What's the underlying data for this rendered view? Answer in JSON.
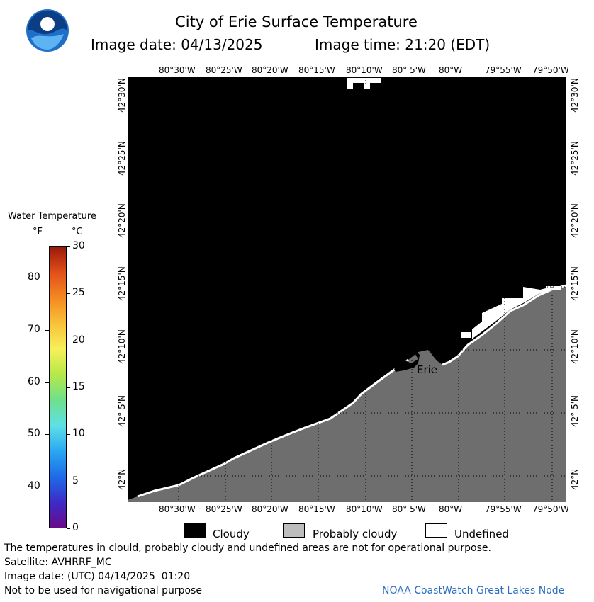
{
  "header": {
    "title": "City of Erie Surface Temperature",
    "image_date_label": "Image date: 04/13/2025",
    "image_time_label": "Image time: 21:20 (EDT)"
  },
  "map": {
    "lon_ticks": [
      "80°30'W",
      "80°25'W",
      "80°20'W",
      "80°15'W",
      "80°10'W",
      "80° 5'W",
      "80°W",
      "79°55'W",
      "79°50'W"
    ],
    "lat_ticks": [
      "42°N",
      "42° 5'N",
      "42°10'N",
      "42°15'N",
      "42°20'N",
      "42°25'N",
      "42°30'N"
    ],
    "city_label": "Erie",
    "colors": {
      "cloudy": "#000000",
      "probably_cloudy": "#6e6e6e",
      "undefined": "#ffffff",
      "grid": "#000000"
    }
  },
  "color_scale": {
    "title": "Water Temperature",
    "unit_f": "°F",
    "unit_c": "°C",
    "f_ticks": [
      "40",
      "50",
      "60",
      "70",
      "80"
    ],
    "c_ticks": [
      "0",
      "5",
      "10",
      "15",
      "20",
      "25",
      "30"
    ],
    "gradient": [
      "#6a0a8a",
      "#3c2bc8",
      "#1f6be8",
      "#2aa8f0",
      "#5fe0e6",
      "#6ee08c",
      "#b6e84a",
      "#f6f05a",
      "#f8c23a",
      "#f48a22",
      "#e2501a",
      "#9a1a0a"
    ]
  },
  "legend": {
    "cloudy": "Cloudy",
    "probably_cloudy": "Probably cloudy",
    "undefined": "Undefined"
  },
  "footer": {
    "disclaimer": "The temperatures in clould, probably cloudy and undefined areas are not for operational purpose.",
    "satellite": "Satellite: AVHRRF_MC",
    "utc_date": "Image date: (UTC) 04/14/2025  01:20",
    "nav_warning": "Not to be used for navigational purpose",
    "credit": "NOAA CoastWatch Great Lakes Node"
  }
}
